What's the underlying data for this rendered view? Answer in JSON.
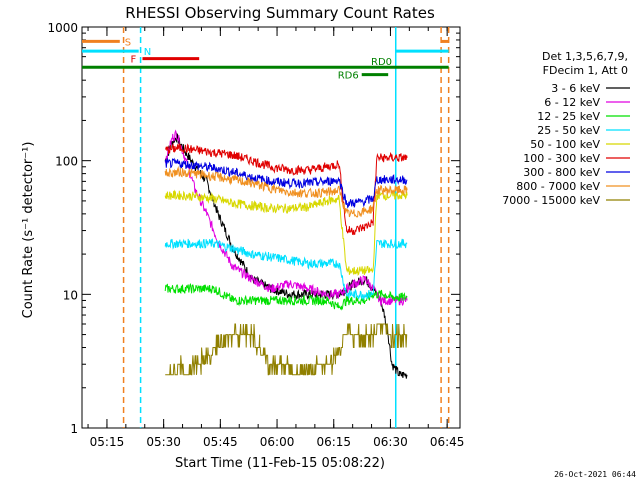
{
  "chart_data": {
    "type": "line",
    "title": "RHESSI Observing Summary Count Rates",
    "xlabel": "Start Time (11-Feb-15 05:08:22)",
    "ylabel": "Count Rate (s⁻¹ detector⁻¹)",
    "x_unit": "minutes since 05:08:22",
    "xlim": [
      0,
      100
    ],
    "ylim": [
      1,
      1000
    ],
    "yscale": "log",
    "x_ticks": [
      {
        "label": "05:15",
        "value": 6.6
      },
      {
        "label": "05:30",
        "value": 21.6
      },
      {
        "label": "05:45",
        "value": 36.6
      },
      {
        "label": "06:00",
        "value": 51.6
      },
      {
        "label": "06:15",
        "value": 66.6
      },
      {
        "label": "06:30",
        "value": 81.6
      },
      {
        "label": "06:45",
        "value": 96.6
      }
    ],
    "y_ticks": [
      {
        "label": "1",
        "value": 1
      },
      {
        "label": "10",
        "value": 10
      },
      {
        "label": "100",
        "value": 100
      },
      {
        "label": "1000",
        "value": 1000
      }
    ],
    "legend_header": [
      "Det 1,3,5,6,7,9,",
      "FDecim 1, Att 0"
    ],
    "legend_position": "right",
    "series": [
      {
        "name": "3 - 6 keV",
        "color": "#000000",
        "x": [
          22,
          24,
          25,
          27,
          30,
          33,
          36,
          40,
          45,
          50,
          55,
          60,
          65,
          68,
          70,
          72,
          75,
          77,
          79,
          80,
          81,
          82,
          84,
          86
        ],
        "y": [
          100,
          140,
          150,
          120,
          90,
          70,
          40,
          22,
          13,
          11,
          10,
          10,
          10,
          10,
          11,
          12,
          13,
          11,
          9,
          7,
          5,
          3,
          2.5,
          2.5
        ]
      },
      {
        "name": "6 - 12 keV",
        "color": "#e000e0",
        "x": [
          22,
          24,
          25,
          27,
          30,
          33,
          36,
          40,
          45,
          50,
          55,
          60,
          65,
          68,
          70,
          72,
          75,
          77,
          79,
          80,
          82,
          86
        ],
        "y": [
          100,
          150,
          160,
          110,
          60,
          40,
          25,
          16,
          13,
          11,
          12,
          11,
          10,
          10,
          11,
          12,
          13,
          11,
          9,
          9,
          9,
          9
        ]
      },
      {
        "name": "12 - 25 keV",
        "color": "#00e000",
        "x": [
          22,
          26,
          30,
          35,
          40,
          45,
          50,
          55,
          60,
          65,
          68,
          70,
          72,
          75,
          77,
          78,
          80,
          82,
          86
        ],
        "y": [
          11,
          11,
          11,
          11,
          9,
          9,
          9,
          9,
          9,
          9,
          8,
          9,
          9,
          9,
          10,
          10,
          10,
          9.5,
          9.5
        ]
      },
      {
        "name": "25 - 50 keV",
        "color": "#00e0ff",
        "x": [
          22,
          26,
          30,
          35,
          40,
          45,
          50,
          55,
          60,
          65,
          68,
          70,
          72,
          75,
          77,
          78,
          80,
          82,
          86
        ],
        "y": [
          24,
          24,
          24,
          24,
          22,
          20,
          19,
          18,
          17,
          17,
          17,
          10,
          10,
          10,
          10,
          24,
          24,
          24,
          24
        ]
      },
      {
        "name": "50 - 100 keV",
        "color": "#d8d800",
        "x": [
          22,
          26,
          30,
          35,
          40,
          45,
          50,
          55,
          60,
          65,
          68,
          70,
          72,
          75,
          77,
          78,
          80,
          82,
          86
        ],
        "y": [
          55,
          55,
          54,
          52,
          48,
          46,
          44,
          44,
          45,
          50,
          52,
          15,
          15,
          15,
          15,
          55,
          55,
          55,
          55
        ]
      },
      {
        "name": "100 - 300 keV",
        "color": "#e00000",
        "x": [
          22,
          26,
          30,
          35,
          40,
          45,
          50,
          55,
          60,
          65,
          68,
          70,
          72,
          75,
          77,
          78,
          80,
          82,
          86
        ],
        "y": [
          120,
          125,
          120,
          115,
          110,
          100,
          90,
          85,
          85,
          90,
          95,
          30,
          30,
          32,
          35,
          105,
          105,
          105,
          105
        ]
      },
      {
        "name": "300 - 800 keV",
        "color": "#0000e0",
        "x": [
          22,
          26,
          30,
          35,
          40,
          45,
          50,
          55,
          60,
          65,
          68,
          70,
          72,
          75,
          77,
          78,
          80,
          82,
          86
        ],
        "y": [
          95,
          95,
          92,
          88,
          82,
          75,
          70,
          68,
          68,
          70,
          72,
          48,
          48,
          50,
          52,
          72,
          72,
          72,
          72
        ]
      },
      {
        "name": "800 - 7000 keV",
        "color": "#f09020",
        "x": [
          22,
          26,
          30,
          35,
          40,
          45,
          50,
          55,
          60,
          65,
          68,
          70,
          72,
          75,
          77,
          78,
          80,
          82,
          86
        ],
        "y": [
          80,
          82,
          80,
          76,
          72,
          68,
          62,
          58,
          57,
          58,
          60,
          40,
          40,
          42,
          44,
          60,
          60,
          60,
          60
        ]
      },
      {
        "name": "7000 - 15000 keV",
        "color": "#908000",
        "x": [
          22,
          24,
          26,
          28,
          30,
          33,
          36,
          40,
          44,
          47,
          50,
          53,
          56,
          60,
          63,
          66,
          68,
          70,
          72,
          75,
          77,
          79,
          82,
          86
        ],
        "y": [
          2.5,
          2.5,
          3,
          2.5,
          3,
          3.5,
          4,
          5,
          5,
          4,
          3,
          3,
          2.5,
          2.5,
          3,
          3,
          4,
          5,
          5,
          5,
          5,
          6,
          5,
          5
        ]
      }
    ],
    "annotations": {
      "bars": [
        {
          "label": "S",
          "color": "#f08020",
          "x1": 0,
          "x2": 10,
          "y": 780,
          "extra": [
            {
              "x1": 95,
              "x2": 97
            }
          ]
        },
        {
          "label": "N",
          "color": "#00e0ff",
          "x1": 0,
          "x2": 15,
          "y": 660,
          "extra": [
            {
              "x1": 83,
              "x2": 97
            }
          ]
        },
        {
          "label": "F",
          "color": "#e00000",
          "x1": 16,
          "x2": 31,
          "y": 580
        },
        {
          "label": "RD6",
          "color": "#008000",
          "x1": 74,
          "x2": 81,
          "y": 440
        },
        {
          "label": "RD0",
          "color": "#008000",
          "x1": 0,
          "x2": 97,
          "y": 500
        }
      ],
      "vlines": [
        {
          "x": 11,
          "color": "#f08020",
          "dash": true
        },
        {
          "x": 15.5,
          "color": "#00e0ff",
          "dash": true
        },
        {
          "x": 83,
          "color": "#00e0ff",
          "dash": false
        },
        {
          "x": 95,
          "color": "#f08020",
          "dash": true
        },
        {
          "x": 97,
          "color": "#f08020",
          "dash": true
        }
      ]
    },
    "footer_timestamp": "26-Oct-2021 06:44",
    "grid": false
  },
  "colors": {
    "axis": "#000000",
    "background": "#ffffff"
  }
}
